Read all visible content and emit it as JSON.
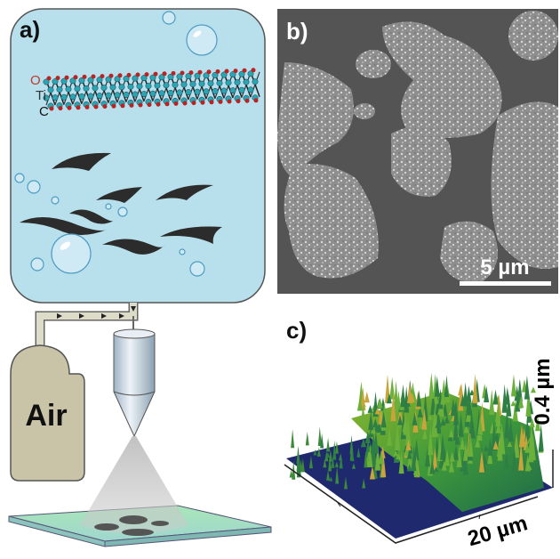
{
  "panel_a": {
    "label": "a)",
    "atoms": [
      "O",
      "Ti",
      "C"
    ],
    "tank": "Air"
  },
  "panel_b": {
    "label": "b)",
    "scale_bar": "5 µm"
  },
  "panel_c": {
    "label": "c)",
    "z_scale": "0.4 µm",
    "x_scale": "20 µm"
  }
}
